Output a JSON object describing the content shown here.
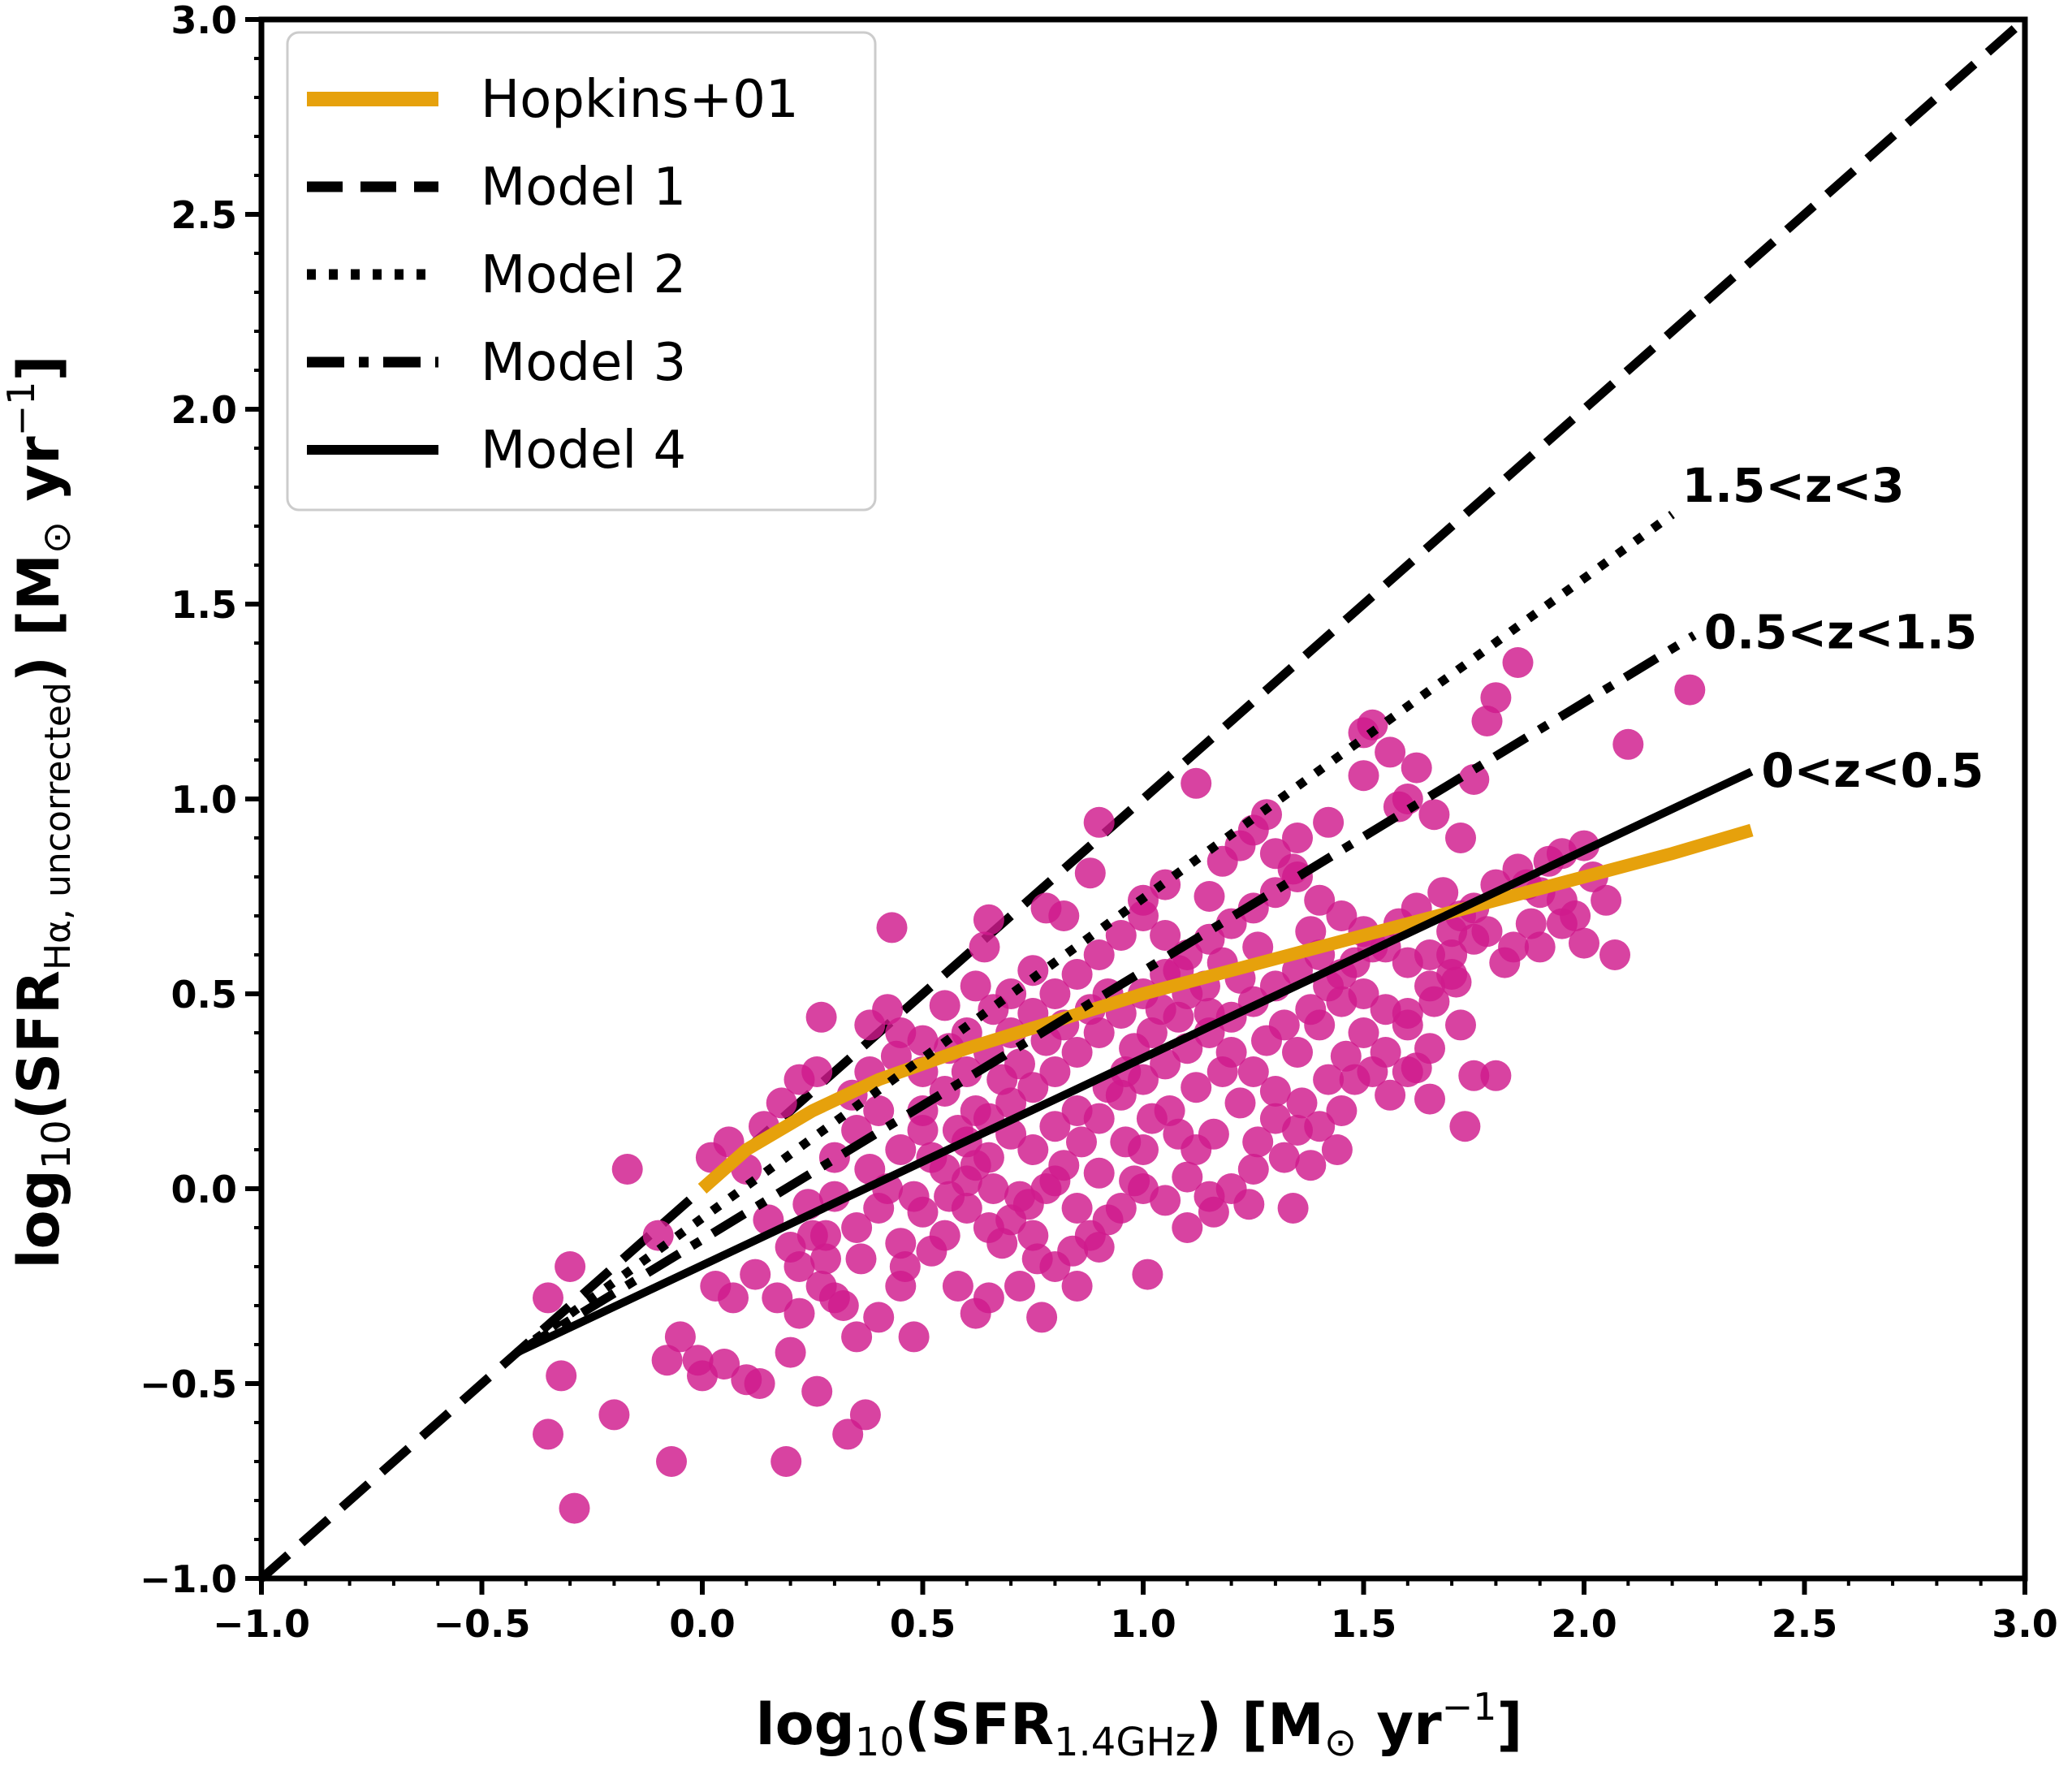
{
  "chart_data": {
    "type": "scatter",
    "xlabel": {
      "prefix": "log",
      "sub1": "10",
      "mid": "(SFR",
      "sub2": "1.4GHz",
      "suffix": ") [M",
      "sun": "⊙",
      "unit": " yr",
      "exp": "−1",
      "close": "]"
    },
    "ylabel": {
      "prefix": "log",
      "sub1": "10",
      "mid": "(SFR",
      "sub2": "Hα, uncorrected",
      "suffix": ") [M",
      "sun": "⊙",
      "unit": " yr",
      "exp": "−1",
      "close": "]"
    },
    "xlim": [
      -1.0,
      3.0
    ],
    "ylim": [
      -1.0,
      3.0
    ],
    "x_ticks": [
      -1.0,
      -0.5,
      0.0,
      0.5,
      1.0,
      1.5,
      2.0,
      2.5,
      3.0
    ],
    "y_ticks": [
      -1.0,
      -0.5,
      0.0,
      0.5,
      1.0,
      1.5,
      2.0,
      2.5,
      3.0
    ],
    "x_tick_labels": [
      "−1.0",
      "−0.5",
      "0.0",
      "0.5",
      "1.0",
      "1.5",
      "2.0",
      "2.5",
      "3.0"
    ],
    "y_tick_labels": [
      "−1.0",
      "−0.5",
      "0.0",
      "0.5",
      "1.0",
      "1.5",
      "2.0",
      "2.5",
      "3.0"
    ],
    "grid": false,
    "legend_position": "top-left",
    "colors": {
      "points": "#d01a8c",
      "hopkins": "#e6a10c",
      "models": "#000000"
    },
    "legend": [
      {
        "label": "Hopkins+01",
        "style": "solid-orange"
      },
      {
        "label": "Model 1",
        "style": "dashed"
      },
      {
        "label": "Model 2",
        "style": "dotted"
      },
      {
        "label": "Model 3",
        "style": "dashdot"
      },
      {
        "label": "Model 4",
        "style": "solid"
      }
    ],
    "lines": [
      {
        "name": "Hopkins+01",
        "style": "solid-orange",
        "x": [
          0.0,
          0.1,
          0.25,
          0.4,
          0.6,
          0.8,
          1.0,
          1.2,
          1.4,
          1.6,
          1.8,
          2.0,
          2.2,
          2.38
        ],
        "y": [
          0.0,
          0.1,
          0.2,
          0.28,
          0.36,
          0.43,
          0.5,
          0.56,
          0.62,
          0.68,
          0.74,
          0.8,
          0.86,
          0.92
        ]
      },
      {
        "name": "Model 1",
        "style": "dashed",
        "x": [
          -1.0,
          3.0
        ],
        "y": [
          -1.0,
          3.0
        ]
      },
      {
        "name": "Model 2",
        "style": "dotted",
        "x": [
          -0.42,
          2.2
        ],
        "y": [
          -0.42,
          1.73
        ]
      },
      {
        "name": "Model 3",
        "style": "dashdot",
        "x": [
          -0.42,
          2.25
        ],
        "y": [
          -0.42,
          1.42
        ]
      },
      {
        "name": "Model 4",
        "style": "solid",
        "x": [
          -0.42,
          2.38
        ],
        "y": [
          -0.42,
          1.07
        ]
      }
    ],
    "annotations": [
      {
        "text": "1.5<z<3",
        "x": 2.2,
        "y": 1.8
      },
      {
        "text": "0.5<z<1.5",
        "x": 2.25,
        "y": 1.42
      },
      {
        "text": "0<z<0.5",
        "x": 2.38,
        "y": 1.06
      }
    ],
    "points": [
      [
        -0.35,
        -0.28
      ],
      [
        -0.3,
        -0.2
      ],
      [
        -0.32,
        -0.48
      ],
      [
        -0.35,
        -0.63
      ],
      [
        -0.29,
        -0.82
      ],
      [
        -0.2,
        -0.58
      ],
      [
        -0.17,
        0.05
      ],
      [
        -0.1,
        -0.12
      ],
      [
        -0.07,
        -0.7
      ],
      [
        -0.08,
        -0.44
      ],
      [
        -0.05,
        -0.38
      ],
      [
        -0.01,
        -0.44
      ],
      [
        0.0,
        -0.48
      ],
      [
        0.05,
        -0.45
      ],
      [
        0.1,
        -0.49
      ],
      [
        0.13,
        -0.5
      ],
      [
        0.19,
        -0.7
      ],
      [
        0.2,
        -0.42
      ],
      [
        0.22,
        -0.32
      ],
      [
        0.26,
        -0.52
      ],
      [
        0.33,
        -0.63
      ],
      [
        0.37,
        -0.58
      ],
      [
        0.28,
        -0.18
      ],
      [
        0.3,
        -0.28
      ],
      [
        0.35,
        -0.38
      ],
      [
        0.4,
        -0.33
      ],
      [
        0.45,
        -0.25
      ],
      [
        0.48,
        -0.38
      ],
      [
        0.58,
        -0.25
      ],
      [
        0.62,
        -0.32
      ],
      [
        0.65,
        -0.28
      ],
      [
        0.72,
        -0.25
      ],
      [
        0.77,
        -0.33
      ],
      [
        0.85,
        -0.25
      ],
      [
        0.9,
        -0.15
      ],
      [
        1.01,
        -0.22
      ],
      [
        0.03,
        -0.25
      ],
      [
        0.07,
        -0.28
      ],
      [
        0.12,
        -0.22
      ],
      [
        0.17,
        -0.28
      ],
      [
        0.22,
        -0.2
      ],
      [
        0.27,
        -0.25
      ],
      [
        0.02,
        0.08
      ],
      [
        0.06,
        0.12
      ],
      [
        0.1,
        0.05
      ],
      [
        0.14,
        0.16
      ],
      [
        0.18,
        0.22
      ],
      [
        0.22,
        0.28
      ],
      [
        0.26,
        0.3
      ],
      [
        0.27,
        0.44
      ],
      [
        0.38,
        0.42
      ],
      [
        0.42,
        0.46
      ],
      [
        0.45,
        0.4
      ],
      [
        0.43,
        0.67
      ],
      [
        0.5,
        0.38
      ],
      [
        0.55,
        0.47
      ],
      [
        0.62,
        0.52
      ],
      [
        0.64,
        0.62
      ],
      [
        0.65,
        0.69
      ],
      [
        0.75,
        0.56
      ],
      [
        0.78,
        0.72
      ],
      [
        0.82,
        0.7
      ],
      [
        0.88,
        0.81
      ],
      [
        0.9,
        0.94
      ],
      [
        1.12,
        1.04
      ],
      [
        1.0,
        0.74
      ],
      [
        1.05,
        0.78
      ],
      [
        1.15,
        0.75
      ],
      [
        1.18,
        0.84
      ],
      [
        1.22,
        0.88
      ],
      [
        1.25,
        0.92
      ],
      [
        1.28,
        0.96
      ],
      [
        1.35,
        0.9
      ],
      [
        1.42,
        0.94
      ],
      [
        1.5,
        1.06
      ],
      [
        1.56,
        1.12
      ],
      [
        1.62,
        1.08
      ],
      [
        1.58,
        0.98
      ],
      [
        1.66,
        0.96
      ],
      [
        1.72,
        0.9
      ],
      [
        1.75,
        1.05
      ],
      [
        1.78,
        1.2
      ],
      [
        1.8,
        1.26
      ],
      [
        1.85,
        1.35
      ],
      [
        1.5,
        1.17
      ],
      [
        1.52,
        1.19
      ],
      [
        1.6,
        1.0
      ],
      [
        1.95,
        0.86
      ],
      [
        2.1,
        1.14
      ],
      [
        2.24,
        1.28
      ],
      [
        2.05,
        0.74
      ],
      [
        2.07,
        0.6
      ],
      [
        1.95,
        0.68
      ],
      [
        2.0,
        0.63
      ],
      [
        1.9,
        0.62
      ],
      [
        1.84,
        0.62
      ],
      [
        1.75,
        0.64
      ],
      [
        1.71,
        0.53
      ],
      [
        1.7,
        0.55
      ],
      [
        1.66,
        0.48
      ],
      [
        1.72,
        0.42
      ],
      [
        1.65,
        0.36
      ],
      [
        1.62,
        0.31
      ],
      [
        1.65,
        0.23
      ],
      [
        1.75,
        0.29
      ],
      [
        1.8,
        0.29
      ],
      [
        1.73,
        0.16
      ],
      [
        1.6,
        0.3
      ],
      [
        1.48,
        0.28
      ],
      [
        1.45,
        0.2
      ],
      [
        1.4,
        0.16
      ],
      [
        1.35,
        0.15
      ],
      [
        1.32,
        0.08
      ],
      [
        1.25,
        0.05
      ],
      [
        1.2,
        0.0
      ],
      [
        1.15,
        -0.02
      ],
      [
        1.1,
        0.03
      ],
      [
        1.05,
        -0.03
      ],
      [
        1.0,
        0.0
      ],
      [
        0.95,
        -0.05
      ],
      [
        0.9,
        0.04
      ],
      [
        0.85,
        -0.05
      ],
      [
        0.8,
        0.02
      ],
      [
        0.75,
        -0.12
      ],
      [
        0.7,
        -0.08
      ],
      [
        0.65,
        -0.1
      ],
      [
        0.6,
        -0.05
      ],
      [
        0.55,
        -0.12
      ],
      [
        0.5,
        -0.06
      ],
      [
        0.45,
        -0.14
      ],
      [
        0.4,
        -0.05
      ],
      [
        0.35,
        -0.1
      ],
      [
        0.3,
        -0.02
      ],
      [
        0.25,
        -0.12
      ],
      [
        0.2,
        -0.15
      ],
      [
        0.15,
        -0.08
      ],
      [
        0.6,
        0.12
      ],
      [
        0.65,
        0.18
      ],
      [
        0.7,
        0.22
      ],
      [
        0.75,
        0.26
      ],
      [
        0.8,
        0.3
      ],
      [
        0.85,
        0.35
      ],
      [
        0.9,
        0.4
      ],
      [
        0.95,
        0.45
      ],
      [
        1.0,
        0.5
      ],
      [
        1.05,
        0.55
      ],
      [
        1.1,
        0.6
      ],
      [
        1.15,
        0.64
      ],
      [
        1.2,
        0.68
      ],
      [
        1.25,
        0.72
      ],
      [
        1.3,
        0.76
      ],
      [
        1.35,
        0.8
      ],
      [
        1.4,
        0.74
      ],
      [
        1.45,
        0.7
      ],
      [
        1.5,
        0.66
      ],
      [
        1.55,
        0.62
      ],
      [
        1.6,
        0.58
      ],
      [
        1.65,
        0.6
      ],
      [
        1.7,
        0.66
      ],
      [
        1.75,
        0.72
      ],
      [
        1.8,
        0.78
      ],
      [
        1.85,
        0.82
      ],
      [
        1.9,
        0.76
      ],
      [
        1.95,
        0.74
      ],
      [
        0.55,
        0.05
      ],
      [
        0.6,
        0.02
      ],
      [
        0.65,
        0.08
      ],
      [
        0.7,
        0.14
      ],
      [
        0.75,
        0.1
      ],
      [
        0.8,
        0.16
      ],
      [
        0.85,
        0.2
      ],
      [
        0.9,
        0.18
      ],
      [
        0.95,
        0.24
      ],
      [
        1.0,
        0.28
      ],
      [
        1.05,
        0.32
      ],
      [
        1.1,
        0.36
      ],
      [
        1.15,
        0.4
      ],
      [
        1.2,
        0.44
      ],
      [
        1.25,
        0.48
      ],
      [
        1.3,
        0.52
      ],
      [
        1.35,
        0.56
      ],
      [
        1.4,
        0.6
      ],
      [
        1.45,
        0.55
      ],
      [
        1.5,
        0.5
      ],
      [
        1.55,
        0.46
      ],
      [
        1.6,
        0.42
      ],
      [
        0.5,
        0.2
      ],
      [
        0.55,
        0.25
      ],
      [
        0.6,
        0.3
      ],
      [
        0.65,
        0.35
      ],
      [
        0.7,
        0.4
      ],
      [
        0.75,
        0.45
      ],
      [
        0.8,
        0.5
      ],
      [
        0.85,
        0.55
      ],
      [
        0.9,
        0.6
      ],
      [
        0.95,
        0.65
      ],
      [
        1.0,
        0.7
      ],
      [
        1.05,
        0.65
      ],
      [
        1.1,
        0.5
      ],
      [
        1.15,
        0.45
      ],
      [
        1.2,
        0.35
      ],
      [
        1.25,
        0.3
      ],
      [
        1.3,
        0.25
      ],
      [
        1.35,
        0.35
      ],
      [
        1.4,
        0.42
      ],
      [
        1.45,
        0.48
      ],
      [
        1.5,
        0.4
      ],
      [
        1.55,
        0.35
      ],
      [
        1.6,
        0.45
      ],
      [
        1.65,
        0.52
      ],
      [
        1.7,
        0.6
      ],
      [
        0.45,
        0.1
      ],
      [
        0.5,
        0.15
      ],
      [
        0.4,
        0.2
      ],
      [
        0.35,
        0.15
      ],
      [
        0.38,
        0.05
      ],
      [
        0.42,
        0.0
      ],
      [
        0.48,
        -0.02
      ],
      [
        0.52,
        0.08
      ],
      [
        0.58,
        0.15
      ],
      [
        0.62,
        0.2
      ],
      [
        0.68,
        0.28
      ],
      [
        0.72,
        0.32
      ],
      [
        0.78,
        0.38
      ],
      [
        0.82,
        0.42
      ],
      [
        0.88,
        0.46
      ],
      [
        0.92,
        0.5
      ],
      [
        0.98,
        0.36
      ],
      [
        1.02,
        0.4
      ],
      [
        1.08,
        0.44
      ],
      [
        1.12,
        0.26
      ],
      [
        1.18,
        0.3
      ],
      [
        1.22,
        0.22
      ],
      [
        1.28,
        0.38
      ],
      [
        1.32,
        0.42
      ],
      [
        1.38,
        0.46
      ],
      [
        1.42,
        0.52
      ],
      [
        1.48,
        0.58
      ],
      [
        1.52,
        0.62
      ],
      [
        1.58,
        0.68
      ],
      [
        1.62,
        0.72
      ],
      [
        1.68,
        0.76
      ],
      [
        1.72,
        0.7
      ],
      [
        1.78,
        0.66
      ],
      [
        1.82,
        0.58
      ],
      [
        1.88,
        0.68
      ],
      [
        1.92,
        0.84
      ],
      [
        2.0,
        0.88
      ],
      [
        2.02,
        0.8
      ],
      [
        1.98,
        0.7
      ],
      [
        1.87,
        0.78
      ],
      [
        1.3,
        0.86
      ],
      [
        1.34,
        0.82
      ],
      [
        1.38,
        0.66
      ],
      [
        1.26,
        0.62
      ],
      [
        1.22,
        0.54
      ],
      [
        1.18,
        0.58
      ],
      [
        1.14,
        0.52
      ],
      [
        1.08,
        0.56
      ],
      [
        1.04,
        0.46
      ],
      [
        0.96,
        0.3
      ],
      [
        0.92,
        0.26
      ],
      [
        0.86,
        0.12
      ],
      [
        0.82,
        0.06
      ],
      [
        0.78,
        0.0
      ],
      [
        0.74,
        -0.04
      ],
      [
        0.68,
        -0.14
      ],
      [
        0.66,
        0.0
      ],
      [
        0.62,
        0.06
      ],
      [
        0.56,
        -0.02
      ],
      [
        0.52,
        -0.16
      ],
      [
        0.46,
        -0.2
      ],
      [
        0.36,
        -0.18
      ],
      [
        0.32,
        -0.3
      ],
      [
        0.28,
        -0.12
      ],
      [
        0.24,
        -0.04
      ],
      [
        0.3,
        0.08
      ],
      [
        0.34,
        0.24
      ],
      [
        0.38,
        0.3
      ],
      [
        0.44,
        0.34
      ],
      [
        0.5,
        0.3
      ],
      [
        0.56,
        0.36
      ],
      [
        0.6,
        0.4
      ],
      [
        0.66,
        0.46
      ],
      [
        0.7,
        0.5
      ],
      [
        1.12,
        0.1
      ],
      [
        1.16,
        0.14
      ],
      [
        1.26,
        0.12
      ],
      [
        1.3,
        0.18
      ],
      [
        1.36,
        0.22
      ],
      [
        1.42,
        0.28
      ],
      [
        1.46,
        0.34
      ],
      [
        1.52,
        0.3
      ],
      [
        1.56,
        0.24
      ],
      [
        1.38,
        0.06
      ],
      [
        1.44,
        0.1
      ],
      [
        1.0,
        0.1
      ],
      [
        0.96,
        0.12
      ],
      [
        1.02,
        0.18
      ],
      [
        1.06,
        0.2
      ],
      [
        1.08,
        0.14
      ],
      [
        0.98,
        0.02
      ],
      [
        0.92,
        -0.08
      ],
      [
        0.88,
        -0.12
      ],
      [
        0.84,
        -0.16
      ],
      [
        0.8,
        -0.2
      ],
      [
        0.76,
        -0.18
      ],
      [
        0.72,
        -0.02
      ],
      [
        1.1,
        -0.1
      ],
      [
        1.16,
        -0.06
      ],
      [
        1.24,
        -0.04
      ],
      [
        1.34,
        -0.05
      ]
    ]
  }
}
